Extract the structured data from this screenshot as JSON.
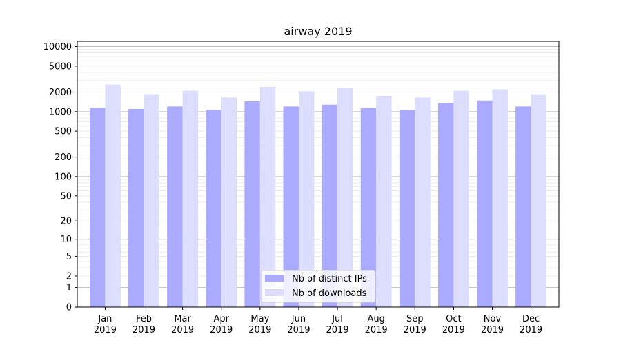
{
  "chart_data": {
    "type": "bar",
    "title": "airway 2019",
    "xlabel": "",
    "ylabel": "",
    "yscale": "log1p",
    "ylim": [
      0,
      12000
    ],
    "yticks": [
      0,
      1,
      2,
      5,
      10,
      20,
      50,
      100,
      200,
      500,
      1000,
      2000,
      5000,
      10000
    ],
    "ytick_labels": [
      "0",
      "1",
      "2",
      "5",
      "10",
      "20",
      "50",
      "100",
      "200",
      "500",
      "1000",
      "2000",
      "5000",
      "10000"
    ],
    "categories": [
      [
        "Jan",
        "2019"
      ],
      [
        "Feb",
        "2019"
      ],
      [
        "Mar",
        "2019"
      ],
      [
        "Apr",
        "2019"
      ],
      [
        "May",
        "2019"
      ],
      [
        "Jun",
        "2019"
      ],
      [
        "Jul",
        "2019"
      ],
      [
        "Aug",
        "2019"
      ],
      [
        "Sep",
        "2019"
      ],
      [
        "Oct",
        "2019"
      ],
      [
        "Nov",
        "2019"
      ],
      [
        "Dec",
        "2019"
      ]
    ],
    "series": [
      {
        "name": "Nb of distinct IPs",
        "color": "#aaaaff",
        "values": [
          1150,
          1100,
          1200,
          1070,
          1450,
          1200,
          1280,
          1130,
          1060,
          1350,
          1480,
          1200
        ]
      },
      {
        "name": "Nb of downloads",
        "color": "#ddddff",
        "values": [
          2600,
          1850,
          2100,
          1650,
          2400,
          2050,
          2300,
          1750,
          1650,
          2100,
          2200,
          1850
        ]
      }
    ],
    "grid": true,
    "legend_position": "lower center"
  }
}
